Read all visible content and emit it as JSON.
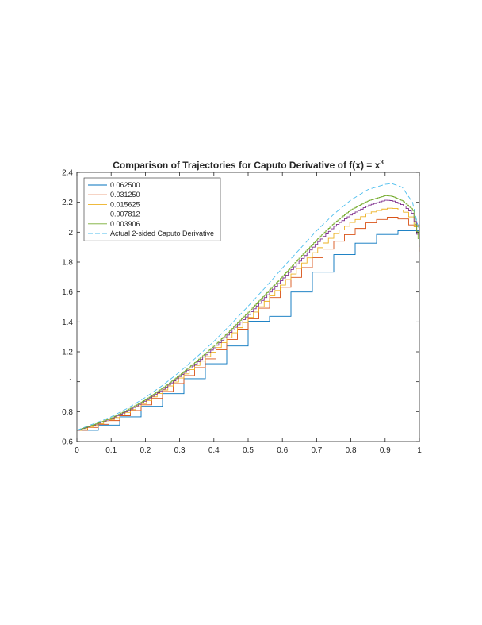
{
  "chart_data": {
    "type": "line",
    "title": "Comparison of Trajectories for Caputo Derivative of f(x) = x",
    "title_superscript": "3",
    "xlabel": "",
    "ylabel": "",
    "xlim": [
      0,
      1
    ],
    "ylim": [
      0.6,
      2.4
    ],
    "xticks": [
      0,
      0.1,
      0.2,
      0.3,
      0.4,
      0.5,
      0.6,
      0.7,
      0.8,
      0.9,
      1
    ],
    "xtick_labels": [
      "0",
      "0.1",
      "0.2",
      "0.3",
      "0.4",
      "0.5",
      "0.6",
      "0.7",
      "0.8",
      "0.9",
      "1"
    ],
    "yticks": [
      0.6,
      0.8,
      1,
      1.2,
      1.4,
      1.6,
      1.8,
      2,
      2.2,
      2.4
    ],
    "ytick_labels": [
      "0.6",
      "0.8",
      "1",
      "1.2",
      "1.4",
      "1.6",
      "1.8",
      "2",
      "2.2",
      "2.4"
    ],
    "grid": false,
    "legend_position": "top-left",
    "x": [
      0,
      0.05,
      0.1,
      0.15,
      0.2,
      0.25,
      0.3,
      0.35,
      0.4,
      0.45,
      0.5,
      0.55,
      0.6,
      0.65,
      0.7,
      0.75,
      0.8,
      0.85,
      0.9,
      0.92,
      0.95,
      0.98,
      1.0
    ],
    "series": [
      {
        "name": "0.062500",
        "color": "#0072BD",
        "dashed": false,
        "step": 0.0625,
        "values": [
          0.675,
          0.7,
          0.74,
          0.79,
          0.85,
          0.92,
          1.0,
          1.08,
          1.16,
          1.265,
          1.405,
          1.405,
          1.535,
          1.665,
          1.755,
          1.85,
          1.915,
          1.96,
          2.01,
          2.01,
          2.01,
          1.9,
          1.89
        ]
      },
      {
        "name": "0.031250",
        "color": "#D95319",
        "dashed": false,
        "step": 0.03125,
        "values": [
          0.675,
          0.705,
          0.745,
          0.8,
          0.86,
          0.935,
          1.02,
          1.105,
          1.2,
          1.31,
          1.42,
          1.535,
          1.645,
          1.75,
          1.855,
          1.94,
          2.01,
          2.07,
          2.1,
          2.1,
          2.08,
          2.03,
          1.87
        ]
      },
      {
        "name": "0.015625",
        "color": "#EDB120",
        "dashed": false,
        "step": 0.015625,
        "values": [
          0.675,
          0.71,
          0.75,
          0.805,
          0.87,
          0.945,
          1.03,
          1.12,
          1.215,
          1.32,
          1.43,
          1.545,
          1.66,
          1.78,
          1.89,
          1.99,
          2.07,
          2.13,
          2.16,
          2.16,
          2.14,
          2.08,
          1.88
        ]
      },
      {
        "name": "0.007812",
        "color": "#7E2F8E",
        "dashed": false,
        "step": 0.0078125,
        "values": [
          0.675,
          0.712,
          0.755,
          0.81,
          0.875,
          0.95,
          1.04,
          1.13,
          1.23,
          1.34,
          1.45,
          1.57,
          1.69,
          1.81,
          1.93,
          2.04,
          2.12,
          2.18,
          2.215,
          2.21,
          2.18,
          2.12,
          1.9
        ]
      },
      {
        "name": "0.003906",
        "color": "#77AC30",
        "dashed": false,
        "step": 0.00390625,
        "values": [
          0.675,
          0.714,
          0.758,
          0.815,
          0.88,
          0.958,
          1.045,
          1.14,
          1.24,
          1.35,
          1.465,
          1.585,
          1.705,
          1.83,
          1.95,
          2.06,
          2.15,
          2.21,
          2.245,
          2.24,
          2.21,
          2.15,
          1.91
        ]
      },
      {
        "name": "Actual 2-sided Caputo Derivative",
        "color": "#4DBEEE",
        "dashed": true,
        "step": 0,
        "values": [
          0.675,
          0.72,
          0.765,
          0.825,
          0.895,
          0.975,
          1.065,
          1.165,
          1.27,
          1.385,
          1.505,
          1.63,
          1.76,
          1.885,
          2.01,
          2.12,
          2.215,
          2.285,
          2.32,
          2.325,
          2.3,
          2.2,
          2.0
        ]
      }
    ]
  }
}
